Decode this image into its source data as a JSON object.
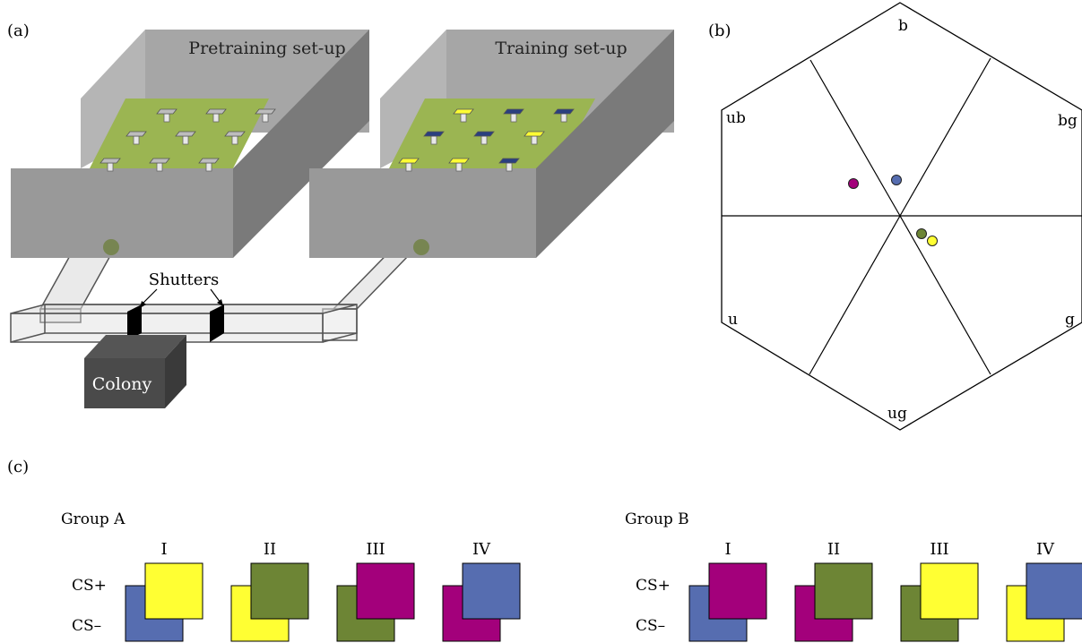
{
  "panel_a": {
    "label": "(a)",
    "pretraining_title": "Pretraining set-up",
    "training_title": "Training set-up",
    "shutters_label": "Shutters",
    "colony_label": "Colony",
    "pretraining_feeders": [
      "grey",
      "grey",
      "grey",
      "grey",
      "grey",
      "grey",
      "grey",
      "grey",
      "grey"
    ],
    "training_feeders": [
      "yellow",
      "navy",
      "navy",
      "navy",
      "navy",
      "yellow",
      "yellow",
      "yellow",
      "navy"
    ]
  },
  "panel_b": {
    "label": "(b)",
    "sectors": [
      "b",
      "bg",
      "g",
      "ug",
      "u",
      "ub"
    ],
    "points": [
      {
        "color": "magenta",
        "x": -0.26,
        "y": 0.18
      },
      {
        "color": "blue",
        "x": -0.02,
        "y": 0.2
      },
      {
        "color": "olive",
        "x": 0.12,
        "y": -0.1
      },
      {
        "color": "yellow",
        "x": 0.18,
        "y": -0.14
      }
    ]
  },
  "panel_c": {
    "label": "(c)",
    "cs_plus_label": "CS+",
    "cs_minus_label": "CS–",
    "groups": [
      {
        "title": "Group A",
        "pairs": [
          {
            "numeral": "I",
            "cs_plus": "yellow",
            "cs_minus": "blue"
          },
          {
            "numeral": "II",
            "cs_plus": "olive",
            "cs_minus": "yellow"
          },
          {
            "numeral": "III",
            "cs_plus": "magenta",
            "cs_minus": "olive"
          },
          {
            "numeral": "IV",
            "cs_plus": "blue",
            "cs_minus": "magenta"
          }
        ]
      },
      {
        "title": "Group B",
        "pairs": [
          {
            "numeral": "I",
            "cs_plus": "magenta",
            "cs_minus": "blue"
          },
          {
            "numeral": "II",
            "cs_plus": "olive",
            "cs_minus": "magenta"
          },
          {
            "numeral": "III",
            "cs_plus": "yellow",
            "cs_minus": "olive"
          },
          {
            "numeral": "IV",
            "cs_plus": "blue",
            "cs_minus": "yellow"
          }
        ]
      }
    ]
  },
  "colors": {
    "yellow": "#ffff33",
    "blue": "#566db0",
    "olive": "#6d8535",
    "magenta": "#a3007b",
    "grey": "#bdbdbd",
    "navy": "#2a3f7f",
    "arena_wall": "#999999",
    "arena_floor": "#9bb552",
    "colony_box": "#4a4a4a"
  }
}
